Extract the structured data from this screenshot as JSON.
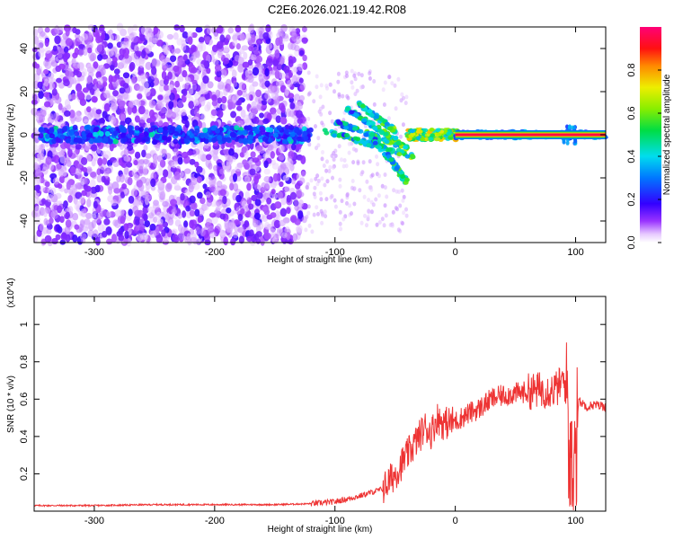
{
  "title": "C2E6.2026.021.19.42.R08",
  "chart_data": [
    {
      "type": "heatmap",
      "xlabel": "Height of straight line (km)",
      "ylabel": "Frequency (Hz)",
      "xlim": [
        -350,
        125
      ],
      "ylim": [
        -50,
        50
      ],
      "xticks": [
        -300,
        -200,
        -100,
        0,
        100
      ],
      "yticks": [
        -40,
        -20,
        0,
        20,
        40
      ],
      "colorbar": {
        "label": "Normalized spectral amplitude",
        "range": [
          0,
          1
        ],
        "ticks": [
          "0.0",
          "0.2",
          "0.4",
          "0.6",
          "0.8"
        ],
        "colormap": "white-purple-blue-cyan-green-yellow-red-magenta"
      },
      "features": {
        "noise_region_x": [
          -350,
          -125
        ],
        "central_band_hz": 0,
        "diverging_branches_x": [
          -105,
          -35
        ],
        "steady_line_x": [
          0,
          125
        ],
        "steady_line_amplitude": 0.95
      }
    },
    {
      "type": "line",
      "xlabel": "Height of straight line (km)",
      "ylabel": "SNR (10 * v/v)",
      "y_multiplier": "(x10^4)",
      "xlim": [
        -350,
        125
      ],
      "ylim": [
        0,
        1.15
      ],
      "xticks": [
        -300,
        -200,
        -100,
        0,
        100
      ],
      "yticks": [
        "0.2",
        "0.4",
        "0.6",
        "0.8",
        "1"
      ],
      "series_color": "#ee3333",
      "series": [
        {
          "x": [
            -350,
            -300,
            -250,
            -200,
            -150,
            -120,
            -100,
            -80,
            -60,
            -50,
            -40,
            -30,
            -25,
            -20,
            -15,
            -10,
            0,
            10,
            20,
            30,
            40,
            50,
            60,
            70,
            80,
            85,
            90,
            95,
            98,
            100,
            105,
            110,
            115,
            125
          ],
          "y": [
            0.03,
            0.03,
            0.035,
            0.035,
            0.035,
            0.04,
            0.05,
            0.08,
            0.12,
            0.2,
            0.3,
            0.4,
            0.45,
            0.42,
            0.5,
            0.47,
            0.48,
            0.52,
            0.55,
            0.6,
            0.62,
            0.63,
            0.64,
            0.65,
            0.65,
            0.66,
            0.7,
            0.6,
            0.1,
            0.6,
            0.58,
            0.56,
            0.57,
            0.56
          ]
        }
      ]
    }
  ]
}
